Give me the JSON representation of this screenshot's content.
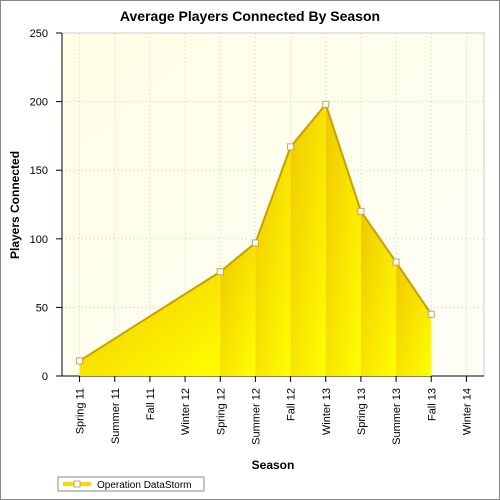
{
  "chart_data": {
    "type": "area",
    "title": "Average Players Connected By Season",
    "x_label": "Season",
    "y_label": "Players Connected",
    "categories": [
      "Spring 11",
      "Summer 11",
      "Fall 11",
      "Winter 12",
      "Spring 12",
      "Summer 12",
      "Fall 12",
      "Winter 13",
      "Spring 13",
      "Summer 13",
      "Fall 13",
      "Winter 14"
    ],
    "series": [
      {
        "name": "Operation DataStorm",
        "color": "#ffd700",
        "values": [
          11,
          null,
          null,
          null,
          76,
          97,
          167,
          198,
          120,
          83,
          45,
          null
        ]
      }
    ],
    "ylim": [
      0,
      250
    ],
    "yticks": [
      0,
      50,
      100,
      150,
      200,
      250
    ],
    "grid": true,
    "legend": "bottom-left"
  }
}
